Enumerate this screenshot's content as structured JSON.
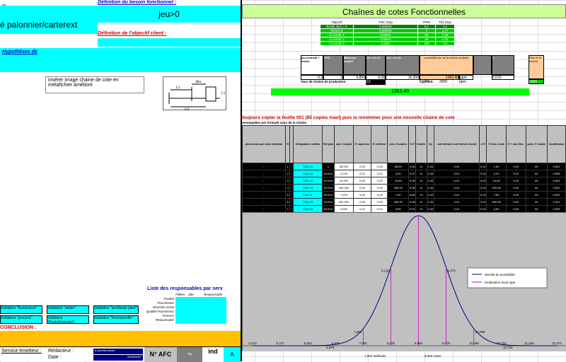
{
  "left": {
    "cell_a1": "nq",
    "besoin_label": "Définition du besoin fonctionnel :",
    "jeu_value": "jeu>0",
    "part_name": "é palonnier/carterext",
    "objectif_label": "Définition de l'objectif client :",
    "hypotheses_label": "Hypothèses de",
    "insert_image_text": "insérer image chaine de cote en métafichier amélioré",
    "resp_title": "Liste des responsables par serv",
    "resp_headers": [
      "Fillière",
      "Site",
      "Responsable"
    ],
    "resp_rows": [
      "Produit",
      "Fournisseur",
      "Direction achat",
      "Qualité Fournisseur",
      "Process",
      "Responsable",
      "Maquettiste"
    ],
    "validations": [
      [
        "Validation \"fournisseur\":",
        "Validation \"atelier\":",
        "Validation \"architecte plant\":"
      ],
      [
        "Validation \"process\":",
        "Validation \"Produit/complet\":",
        "Validation \"fonctionnelle\":"
      ]
    ],
    "conclusion_label": "CONCLUSION :",
    "service_label": "Service émetteur :",
    "redacteur_label": "Rédacteur :",
    "date_label": "Date :",
    "redacteur_value": "b.yvemeonteant",
    "date_value": "02/08/2007",
    "afc_label": "N° AFC",
    "ind_label": "ind",
    "ind_value": "A",
    "nq_small": "nq"
  },
  "right": {
    "main_title": "Chaînes de cotes Fonctionnelles",
    "spec_headers": [
      "Objectif",
      "TNC Stop",
      "PPM",
      "T/D Stop"
    ],
    "spec_rows": [
      [
        "BASE JEU = 0",
        "0,0000%",
        "0,1",
        "1,1"
      ],
      [
        "SPILE B",
        "0,0000%",
        "0",
        "1,27"
      ],
      [
        "CLASSE 1",
        "0,006%",
        "60",
        "1,36"
      ],
      [
        "CLASSE 2",
        "0,006%",
        "60",
        "1,41"
      ],
      [
        "CLASSE 3",
        "0,20%",
        "250",
        "1,0"
      ]
    ],
    "summary_headers": [
      "jeu nominal + moule",
      "IT#C",
      "Mean jeu moyen",
      "Min calculé",
      "Max calculé",
      "probabilité jeu de la chaîne produite",
      "",
      "σ",
      "État de la chaîne"
    ],
    "summary_values": [
      "0,3",
      "2",
      "0,850",
      "0,08",
      "10,300",
      "1363,40",
      "ppm",
      "0,010",
      "2000"
    ],
    "summary_row2_label": "Taux de chaîne de production",
    "summary_row2_values": [
      "0,5",
      "CpiiRes",
      "2000",
      "ppm"
    ],
    "green_value": "1363,40",
    "instruction": "toujours copier la feuille 001 (85 copies maxi) puis la renommer pour une nouvelle chaine de cote",
    "instruction_sub": "renseignées par formule sous de la chaine",
    "table_headers": [
      "pièces/cote par zone/ matériau",
      "R",
      "",
      "Désignation maillon",
      "Réf plan",
      "nom. Cnoduf",
      "IT. supérieur",
      "IT. inférieur",
      "nom. Cnoduf a",
      "+/-IT",
      "Distrib.",
      "Cp",
      "coté attribué cote fermée décent",
      "σ IT",
      "IT théo. brute",
      "IT + min théo.",
      "prob. IT chaine",
      "Contribution"
    ],
    "table_rows": [
      [
        "✓",
        "1",
        "✓",
        "TDA-13",
        "1",
        "65,000",
        "0,08",
        "-0,08",
        "65,00",
        "0,08",
        "N",
        "1,33",
        "0,01",
        "0,01",
        "1,00",
        "0,00",
        "00",
        "0,021"
      ],
      [
        "✓",
        "2",
        "✓",
        "TDA-18",
        "XXXXX",
        "4,200",
        "0,02",
        "-0,02",
        "4,20",
        "0,07",
        "N",
        "1,33",
        "0,01",
        "0,01",
        "0,22",
        "0,22",
        "00",
        "0,083"
      ],
      [
        "✓",
        "3",
        "✓",
        "TDA-19",
        "XXXXX",
        "10,500",
        "0,05",
        "-0,05",
        "10,50",
        "0,05",
        "N",
        "1,33",
        "0,01",
        "0,01",
        "10,00",
        "0,00",
        "00",
        "0,001"
      ],
      [
        "✓",
        "4",
        "✓",
        "TDA-10",
        "XXXXX",
        "430,000",
        "0,08",
        "-0,08",
        "430,00",
        "0,08",
        "N",
        "1,33",
        "0,01",
        "0,01",
        "420,00",
        "0,00",
        "00",
        "0,021"
      ],
      [
        "✓",
        "5",
        "✓",
        "TDA-11",
        "XXXXX",
        "7,000",
        "0,06",
        "-0,06",
        "7,00",
        "0,06",
        "N",
        "1,33",
        "0,01",
        "0,01",
        "7,00",
        "0,00",
        "00",
        "0,042"
      ],
      [
        "✓",
        "6",
        "✓",
        "TDA-15",
        "XXXXX",
        "452,000",
        "0,08",
        "-0,08",
        "452,00",
        "0,08",
        "N",
        "1,33",
        "0,01",
        "0,01",
        "452,00",
        "0,00",
        "00",
        "0,021"
      ],
      [
        "✓",
        "7",
        "✓",
        "TDA-16",
        "XXXXX",
        "3,550",
        "0,02",
        "-0,02",
        "3,55",
        "0,01",
        "N",
        "1,33",
        "0,01",
        "0,01",
        "3,00",
        "0,00",
        "00",
        "0,003"
      ],
      [
        "✓",
        "8",
        "✓",
        "TDA-16",
        "XXXXX",
        "17,000",
        "0,08",
        "-0,08",
        "17,00",
        "0,08",
        "N",
        "1,33",
        "0,01",
        "0,01",
        "17,00",
        "0,00",
        "00",
        "0,021"
      ],
      [
        "✓",
        "9",
        "✓",
        "TDA-17",
        "XXXXX",
        "12,500",
        "0,06",
        "-0,06",
        "12,50",
        "0,06",
        "N",
        "1,33",
        "0,01",
        "0,01",
        "12,00",
        "0,00",
        "00",
        "0,042"
      ],
      [
        "✓",
        "10",
        "✓",
        "TDA-18",
        "XXXXX",
        "425,000",
        "0,08",
        "-0,08",
        "425,00",
        "0,08",
        "N",
        "1,33",
        "0,01",
        "0,01",
        "425,00",
        "0,00",
        "00",
        "0,021"
      ],
      [
        "✓",
        "11",
        "✓",
        "TDA-19",
        "XXXXX",
        "118,000",
        "0,08",
        "-0,08",
        "118,00",
        "0,08",
        "N",
        "1,33",
        "0,01",
        "0,01",
        "118,00",
        "0,00",
        "00",
        "0,021"
      ],
      [
        "✓",
        "12",
        "✓",
        "TDA-20",
        "XXXXX",
        "142,000",
        "0,08",
        "-0,08",
        "142,00",
        "0,08",
        "N",
        "1,33",
        "0,01",
        "0,01",
        "142,00",
        "0,00",
        "00",
        "0,021"
      ]
    ],
    "bottom_labels": [
      "7,001 méthode",
      "8,000 cotes"
    ]
  },
  "chart_data": {
    "type": "line",
    "series": [
      {
        "name": "densité de probabilité",
        "color": "#000080",
        "x": [
          5.103,
          5.727,
          6.352,
          6.976,
          7.601,
          8.225,
          8.85,
          9.475,
          10.099,
          10.724,
          11.348,
          11.973
        ],
        "y": [
          0,
          0.002,
          0.02,
          0.09,
          0.37,
          0.82,
          1.0,
          0.82,
          0.37,
          0.09,
          0.02,
          0.002
        ]
      },
      {
        "name": "localisation écart type",
        "color": "#cc00cc",
        "x": [
          6.976,
          7.601,
          8.225,
          8.85,
          9.475,
          10.099,
          10.724
        ]
      }
    ],
    "x_tick_labels": [
      "5,103",
      "5,727",
      "6,352",
      "6,976",
      "7,601",
      "8,225",
      "8,850",
      "9,475",
      "10,099",
      "10,724",
      "11,348",
      "11,973"
    ],
    "point_labels": [
      "6,976",
      "7,601",
      "8,225",
      "9,475",
      "10,099",
      "10,724"
    ],
    "legend_position": "right"
  }
}
